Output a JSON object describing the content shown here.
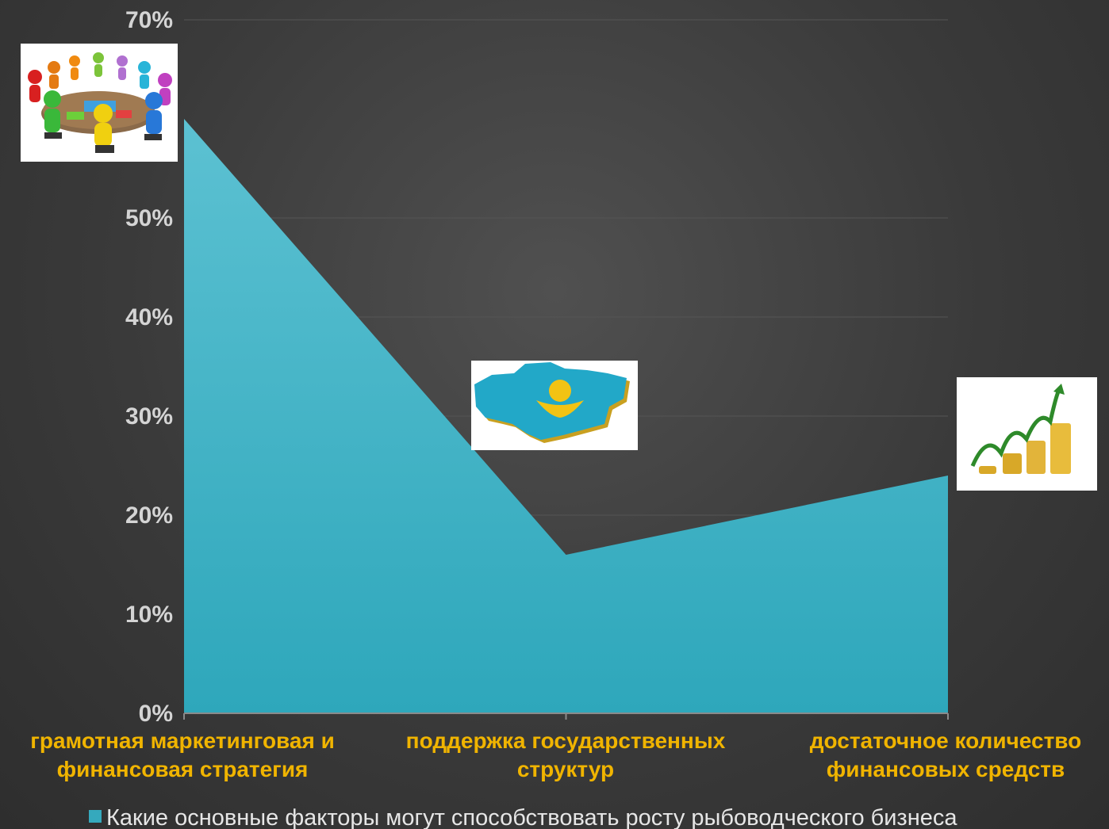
{
  "chart_data": {
    "type": "area",
    "categories": [
      [
        "грамотная маркетинговая и",
        "финансовая стратегия"
      ],
      [
        "поддержка государственных",
        "структур"
      ],
      [
        "достаточное количество",
        "финансовых средств"
      ]
    ],
    "series": [
      {
        "name": "Какие основные факторы могут способствовать росту рыбоводческого бизнеса",
        "values": [
          60,
          16,
          24
        ],
        "color": "#35a9bd"
      }
    ],
    "yticks": [
      "0%",
      "10%",
      "20%",
      "30%",
      "40%",
      "50%",
      "70%"
    ],
    "ylim": [
      0,
      70
    ],
    "grid": true,
    "legend": "bottom",
    "label_color": "#f0b400"
  },
  "images": [
    {
      "icon": "round-table-meeting-icon"
    },
    {
      "icon": "kazakhstan-map-icon"
    },
    {
      "icon": "coin-growth-icon"
    }
  ]
}
